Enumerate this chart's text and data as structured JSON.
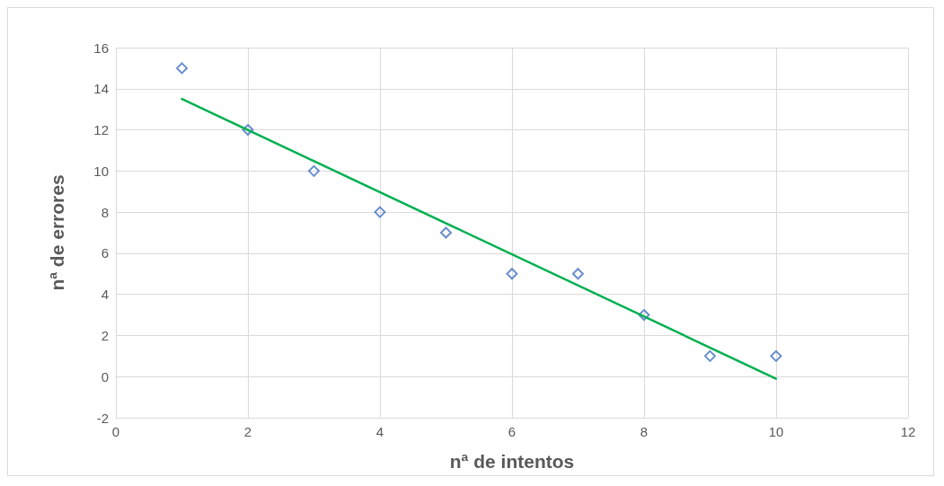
{
  "chart_data": {
    "type": "scatter",
    "xlabel": "nª de intentos",
    "ylabel": "nª de errores",
    "series": [
      {
        "color": "#4472c4",
        "x": [
          1,
          2,
          3,
          4,
          5,
          6,
          7,
          8,
          9,
          10
        ],
        "values": [
          15,
          12,
          10,
          8,
          7,
          5,
          5,
          3,
          1,
          1
        ],
        "marker": "diamond"
      },
      {
        "type": "line",
        "color": "#00b050",
        "x": [
          1,
          10
        ],
        "values": [
          13.5,
          -0.1
        ],
        "line_style": "solid"
      }
    ],
    "xlim": [
      0,
      12
    ],
    "xticks": [
      0,
      2,
      4,
      6,
      8,
      10,
      12
    ],
    "ylim": [
      -2,
      16
    ],
    "yticks": [
      -2,
      0,
      2,
      4,
      6,
      8,
      10,
      12,
      14,
      16
    ],
    "grid": true
  }
}
